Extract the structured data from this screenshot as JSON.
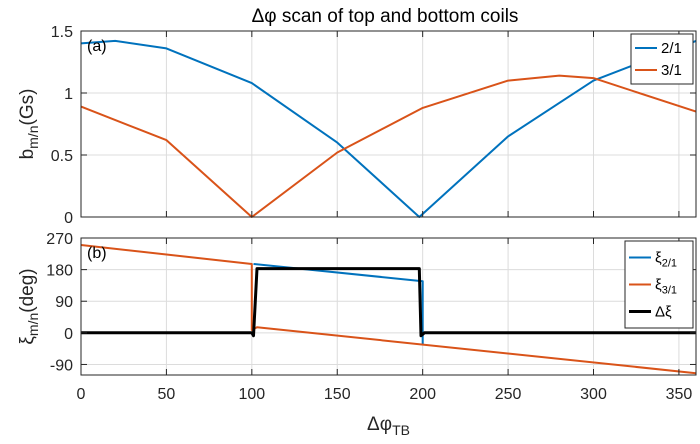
{
  "title": "Δφ scan of top and bottom coils",
  "colors": {
    "blue": "#0072BD",
    "orange": "#D95319",
    "black": "#000000"
  },
  "chart_data": [
    {
      "type": "line",
      "panel": "(a)",
      "xlim": [
        0,
        360
      ],
      "ylim": [
        0,
        1.5
      ],
      "xticks": [
        0,
        50,
        100,
        150,
        200,
        250,
        300,
        350
      ],
      "yticks": [
        0,
        0.5,
        1,
        1.5
      ],
      "ytick_labels": [
        "0",
        "0.5",
        "1",
        "1.5"
      ],
      "ylabel_main": "b",
      "ylabel_sub": "m/n",
      "ylabel_unit": "(Gs)",
      "grid": true,
      "legend_position": "top-right",
      "series": [
        {
          "name": "2/1",
          "color": "#0072BD",
          "x": [
            0,
            20,
            50,
            100,
            150,
            198,
            250,
            300,
            360
          ],
          "y": [
            1.4,
            1.42,
            1.36,
            1.08,
            0.6,
            0.0,
            0.65,
            1.1,
            1.42
          ]
        },
        {
          "name": "3/1",
          "color": "#D95319",
          "x": [
            0,
            50,
            100,
            150,
            200,
            250,
            280,
            300,
            360
          ],
          "y": [
            0.89,
            0.62,
            0.0,
            0.52,
            0.88,
            1.1,
            1.14,
            1.12,
            0.85
          ]
        }
      ]
    },
    {
      "type": "line",
      "panel": "(b)",
      "xlim": [
        0,
        360
      ],
      "ylim": [
        -120,
        270
      ],
      "xticks": [
        0,
        50,
        100,
        150,
        200,
        250,
        300,
        350
      ],
      "yticks": [
        -90,
        0,
        90,
        180,
        270
      ],
      "ytick_labels": [
        "-90",
        "0",
        "90",
        "180",
        "270"
      ],
      "xlabel_main": "Δφ",
      "xlabel_sub": "TB",
      "ylabel_main": "ξ",
      "ylabel_sub": "m/n",
      "ylabel_unit": "(deg)",
      "grid": true,
      "legend_position": "top-right",
      "series": [
        {
          "name_main": "ξ",
          "name_sub": "2/1",
          "color": "#0072BD",
          "x": [
            101,
            200,
            200
          ],
          "y": [
            196,
            147,
            -35
          ]
        },
        {
          "name_main": "ξ",
          "name_sub": "3/1",
          "color": "#D95319",
          "x": [
            0,
            100,
            100,
            103,
            360
          ],
          "y": [
            250,
            196,
            8,
            16,
            -115
          ]
        },
        {
          "name_main": "Δξ",
          "name_sub": "",
          "color": "#000000",
          "x": [
            0,
            100,
            101,
            103,
            197,
            198,
            199,
            201,
            360
          ],
          "y": [
            0,
            0,
            -8,
            183,
            183,
            183,
            -8,
            0,
            0
          ]
        }
      ]
    }
  ]
}
